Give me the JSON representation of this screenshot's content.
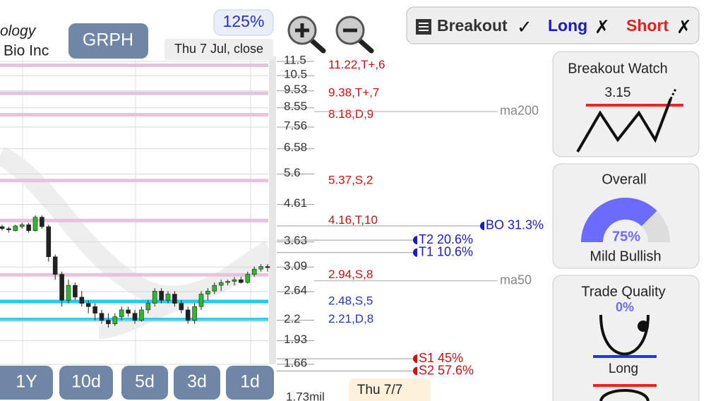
{
  "header": {
    "company_fragment": "ology",
    "company_name": "Bio Inc",
    "ticker": "GRPH",
    "zoom": "125%",
    "date": "Thu 7 Jul, close"
  },
  "filters": {
    "breakout": "Breakout",
    "breakout_mark": "✓",
    "long": "Long",
    "long_mark": "✗",
    "short": "Short",
    "short_mark": "✗"
  },
  "price_chart": {
    "scale": "log",
    "ylim": [
      1.66,
      11.5
    ],
    "yticks": [
      11.5,
      10.5,
      9.53,
      8.55,
      7.56,
      6.58,
      5.6,
      4.61,
      3.63,
      3.09,
      2.64,
      2.2,
      1.93,
      1.66
    ],
    "levels": [
      {
        "value": 11.22,
        "label": "11.22,T+,6",
        "color": "#e6c3dc",
        "text_color": "#cc1111"
      },
      {
        "value": 9.38,
        "label": "9.38,T+,7",
        "color": "#e6c3dc",
        "text_color": "#cc1111"
      },
      {
        "value": 8.18,
        "label": "8.18,D,9",
        "color": "#e6c3dc",
        "text_color": "#cc1111"
      },
      {
        "value": 5.37,
        "label": "5.37,S,2",
        "color": "#e6c3dc",
        "text_color": "#cc1111"
      },
      {
        "value": 4.16,
        "label": "4.16,T,10",
        "color": "#e6c3dc",
        "text_color": "#cc1111"
      },
      {
        "value": 2.94,
        "label": "2.94,S,8",
        "color": "#e6c3dc",
        "text_color": "#cc1111"
      },
      {
        "value": 2.48,
        "label": "2.48,S,5",
        "color": "#22ccee",
        "text_color": "#2233cc"
      },
      {
        "value": 2.21,
        "label": "2.21,D,8",
        "color": "#22ccee",
        "text_color": "#2233cc"
      }
    ],
    "moving_averages": [
      {
        "name": "ma200",
        "price": 8.35
      },
      {
        "name": "ma50",
        "price": 2.83
      }
    ],
    "targets": [
      {
        "label": "BO 31.3%",
        "price": 4.02,
        "color": "#1a1acc"
      },
      {
        "label": "T2 20.6%",
        "price": 3.67,
        "color": "#1a1acc"
      },
      {
        "label": "T1 10.6%",
        "price": 3.39,
        "color": "#1a1acc"
      },
      {
        "label": "S1 45%",
        "price": 1.72,
        "color": "#cc1111"
      },
      {
        "label": "S2 57.6%",
        "price": 1.59,
        "color": "#cc1111"
      }
    ],
    "candles": [
      [
        4.0,
        4.05,
        3.9,
        3.95
      ],
      [
        3.95,
        4.0,
        3.85,
        3.92
      ],
      [
        3.9,
        4.05,
        3.88,
        4.02
      ],
      [
        4.0,
        4.1,
        3.95,
        4.05
      ],
      [
        4.05,
        4.1,
        3.85,
        3.9
      ],
      [
        3.9,
        4.3,
        3.88,
        4.25
      ],
      [
        4.25,
        4.3,
        3.95,
        4.0
      ],
      [
        4.0,
        4.05,
        3.2,
        3.3
      ],
      [
        3.3,
        3.35,
        2.85,
        2.95
      ],
      [
        2.95,
        3.0,
        2.4,
        2.5
      ],
      [
        2.5,
        2.85,
        2.45,
        2.75
      ],
      [
        2.75,
        2.8,
        2.5,
        2.55
      ],
      [
        2.55,
        2.65,
        2.4,
        2.45
      ],
      [
        2.45,
        2.5,
        2.3,
        2.4
      ],
      [
        2.4,
        2.45,
        2.2,
        2.3
      ],
      [
        2.3,
        2.35,
        2.15,
        2.2
      ],
      [
        2.2,
        2.3,
        2.1,
        2.15
      ],
      [
        2.15,
        2.3,
        2.12,
        2.25
      ],
      [
        2.25,
        2.4,
        2.2,
        2.35
      ],
      [
        2.35,
        2.4,
        2.25,
        2.3
      ],
      [
        2.3,
        2.35,
        2.15,
        2.2
      ],
      [
        2.2,
        2.4,
        2.18,
        2.35
      ],
      [
        2.35,
        2.5,
        2.3,
        2.45
      ],
      [
        2.45,
        2.7,
        2.4,
        2.65
      ],
      [
        2.65,
        2.7,
        2.45,
        2.5
      ],
      [
        2.5,
        2.65,
        2.45,
        2.6
      ],
      [
        2.6,
        2.65,
        2.4,
        2.45
      ],
      [
        2.45,
        2.5,
        2.3,
        2.35
      ],
      [
        2.35,
        2.4,
        2.15,
        2.2
      ],
      [
        2.2,
        2.45,
        2.15,
        2.4
      ],
      [
        2.4,
        2.65,
        2.35,
        2.6
      ],
      [
        2.6,
        2.7,
        2.5,
        2.65
      ],
      [
        2.65,
        2.8,
        2.6,
        2.75
      ],
      [
        2.75,
        2.85,
        2.65,
        2.8
      ],
      [
        2.8,
        2.85,
        2.75,
        2.82
      ],
      [
        2.82,
        2.9,
        2.75,
        2.85
      ],
      [
        2.85,
        2.9,
        2.78,
        2.8
      ],
      [
        2.8,
        3.0,
        2.78,
        2.95
      ],
      [
        2.95,
        3.1,
        2.9,
        3.05
      ],
      [
        3.05,
        3.15,
        3.0,
        3.1
      ],
      [
        3.1,
        3.15,
        3.0,
        3.08
      ]
    ],
    "volume_label": "1.73mil",
    "cursor_date": "Thu 7/7"
  },
  "timeframes": [
    "1Y",
    "10d",
    "5d",
    "3d",
    "1d"
  ],
  "panels": {
    "breakout_watch": {
      "title": "Breakout Watch",
      "value": "3.15"
    },
    "overall": {
      "title": "Overall",
      "gauge": 75,
      "gauge_label": "75%",
      "sentiment": "Mild Bullish"
    },
    "trade_quality": {
      "title": "Trade Quality",
      "score": "0%",
      "direction": "Long"
    }
  }
}
